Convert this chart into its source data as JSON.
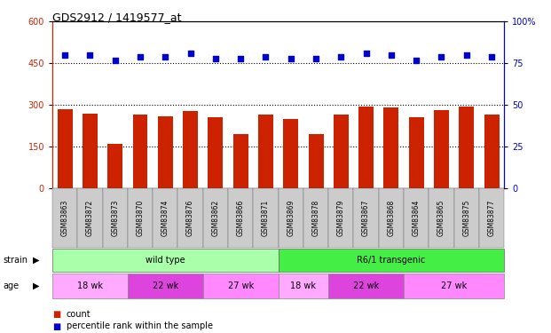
{
  "title": "GDS2912 / 1419577_at",
  "samples": [
    "GSM83863",
    "GSM83872",
    "GSM83873",
    "GSM83870",
    "GSM83874",
    "GSM83876",
    "GSM83862",
    "GSM83866",
    "GSM83871",
    "GSM83869",
    "GSM83878",
    "GSM83879",
    "GSM83867",
    "GSM83868",
    "GSM83864",
    "GSM83865",
    "GSM83875",
    "GSM83877"
  ],
  "counts": [
    285,
    270,
    160,
    265,
    260,
    278,
    255,
    195,
    265,
    250,
    195,
    265,
    295,
    290,
    255,
    280,
    295,
    265
  ],
  "percentiles": [
    80,
    80,
    77,
    79,
    79,
    81,
    78,
    78,
    79,
    78,
    78,
    79,
    81,
    80,
    77,
    79,
    80,
    79
  ],
  "ylim_left": [
    0,
    600
  ],
  "ylim_right": [
    0,
    100
  ],
  "yticks_left": [
    0,
    150,
    300,
    450,
    600
  ],
  "yticks_right": [
    0,
    25,
    50,
    75,
    100
  ],
  "bar_color": "#cc2200",
  "dot_color": "#0000cc",
  "strain_groups": [
    {
      "label": "wild type",
      "start": 0,
      "end": 9,
      "color": "#aaffaa"
    },
    {
      "label": "R6/1 transgenic",
      "start": 9,
      "end": 18,
      "color": "#44ee44"
    }
  ],
  "age_groups": [
    {
      "label": "18 wk",
      "start": 0,
      "end": 3,
      "color": "#ffaaff"
    },
    {
      "label": "22 wk",
      "start": 3,
      "end": 6,
      "color": "#dd44dd"
    },
    {
      "label": "27 wk",
      "start": 6,
      "end": 9,
      "color": "#ff88ff"
    },
    {
      "label": "18 wk",
      "start": 9,
      "end": 11,
      "color": "#ffaaff"
    },
    {
      "label": "22 wk",
      "start": 11,
      "end": 14,
      "color": "#dd44dd"
    },
    {
      "label": "27 wk",
      "start": 14,
      "end": 18,
      "color": "#ff88ff"
    }
  ],
  "legend_count_color": "#cc2200",
  "legend_pct_color": "#0000cc",
  "xtick_bg": "#cccccc",
  "grid_dotted_color": "#000000"
}
